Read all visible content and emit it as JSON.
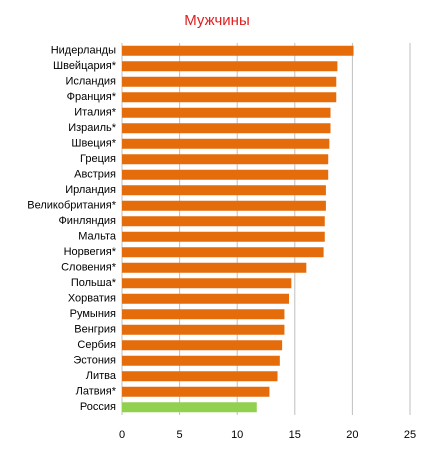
{
  "chart_data": {
    "type": "barh",
    "title": "Мужчины",
    "categories": [
      "Нидерланды",
      "Швейцария*",
      "Исландия",
      "Франция*",
      "Италия*",
      "Израиль*",
      "Швеция*",
      "Греция",
      "Австрия",
      "Ирландия",
      "Великобритания*",
      "Финляндия",
      "Мальта",
      "Норвегия*",
      "Словения*",
      "Польша*",
      "Хорватия",
      "Румыния",
      "Венгрия",
      "Сербия",
      "Эстония",
      "Литва",
      "Латвия*",
      "Россия"
    ],
    "values": [
      20.1,
      18.7,
      18.6,
      18.6,
      18.1,
      18.1,
      18.0,
      17.9,
      17.9,
      17.7,
      17.7,
      17.6,
      17.6,
      17.5,
      16.0,
      14.7,
      14.5,
      14.1,
      14.1,
      13.9,
      13.7,
      13.5,
      12.8,
      11.7
    ],
    "colors": [
      "#e46c0a",
      "#e46c0a",
      "#e46c0a",
      "#e46c0a",
      "#e46c0a",
      "#e46c0a",
      "#e46c0a",
      "#e46c0a",
      "#e46c0a",
      "#e46c0a",
      "#e46c0a",
      "#e46c0a",
      "#e46c0a",
      "#e46c0a",
      "#e46c0a",
      "#e46c0a",
      "#e46c0a",
      "#e46c0a",
      "#e46c0a",
      "#e46c0a",
      "#e46c0a",
      "#e46c0a",
      "#e46c0a",
      "#92d050"
    ],
    "xlim": [
      0,
      25
    ],
    "xticks": [
      0,
      5,
      10,
      15,
      20,
      25
    ],
    "grid": true
  }
}
